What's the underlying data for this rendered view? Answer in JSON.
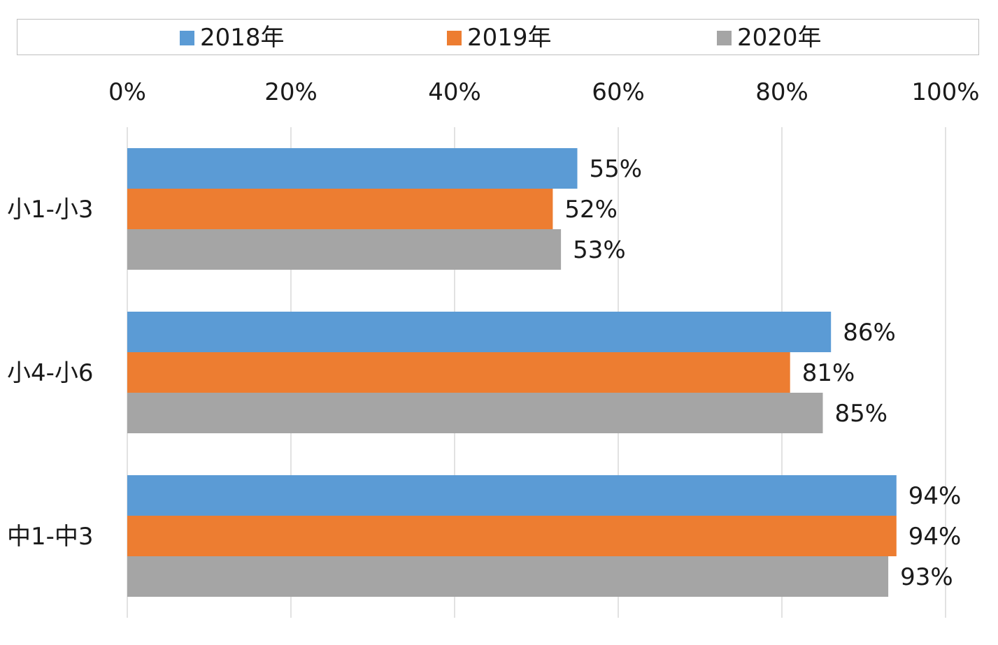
{
  "chart_data": {
    "type": "bar",
    "orientation": "horizontal",
    "categories": [
      "小1-小3",
      "小4-小6",
      "中1-中3"
    ],
    "series": [
      {
        "name": "2018年",
        "color": "#5b9bd5",
        "values": [
          55,
          86,
          94
        ],
        "labels": [
          "55%",
          "86%",
          "94%"
        ]
      },
      {
        "name": "2019年",
        "color": "#ed7d31",
        "values": [
          52,
          81,
          94
        ],
        "labels": [
          "52%",
          "81%",
          "94%"
        ]
      },
      {
        "name": "2020年",
        "color": "#a5a5a5",
        "values": [
          53,
          85,
          93
        ],
        "labels": [
          "53%",
          "85%",
          "93%"
        ]
      }
    ],
    "x_ticks": [
      "0%",
      "20%",
      "40%",
      "60%",
      "80%",
      "100%"
    ],
    "xlim": [
      0,
      100
    ],
    "x_axis_position": "top",
    "grid": true,
    "legend_position": "top",
    "title": "",
    "xlabel": "",
    "ylabel": ""
  }
}
